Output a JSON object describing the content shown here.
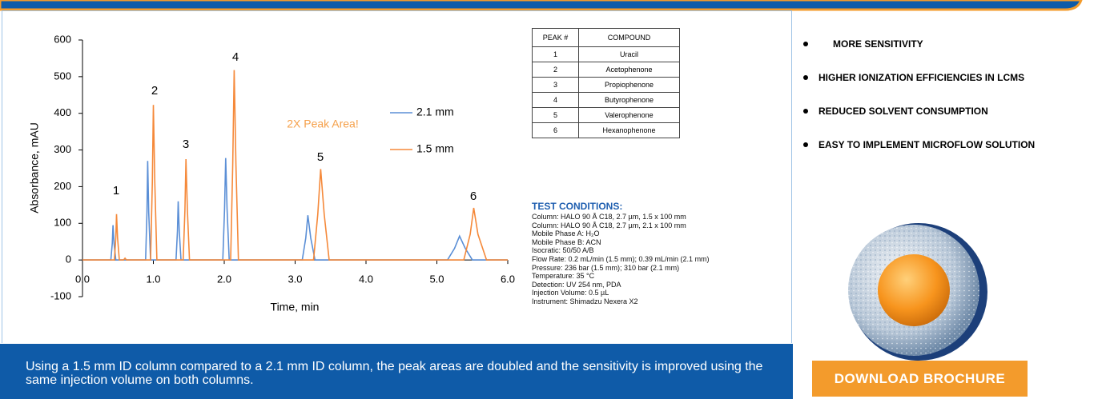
{
  "chart_data": {
    "type": "line",
    "y_label": "Absorbance, mAU",
    "x_label": "Time, min",
    "xlim": [
      0,
      6
    ],
    "ylim": [
      -100,
      600
    ],
    "xticks": [
      {
        "value": 0,
        "label": "0.0"
      },
      {
        "value": 1,
        "label": "1.0"
      },
      {
        "value": 2,
        "label": "2.0"
      },
      {
        "value": 3,
        "label": "3.0"
      },
      {
        "value": 4,
        "label": "4.0"
      },
      {
        "value": 5,
        "label": "5.0"
      },
      {
        "value": 6,
        "label": "6.0"
      }
    ],
    "yticks": [
      -100,
      0,
      100,
      200,
      300,
      400,
      500,
      600
    ],
    "series": [
      {
        "name": "2.1 mm",
        "color": "#5b8fd6",
        "x": [
          0,
          0.4,
          0.42,
          0.43,
          0.445,
          0.47,
          0.89,
          0.91,
          0.92,
          0.935,
          0.96,
          1.32,
          1.34,
          1.35,
          1.365,
          1.39,
          1.98,
          2.005,
          2.02,
          2.04,
          2.07,
          3.1,
          3.15,
          3.18,
          3.22,
          3.28,
          5.15,
          5.25,
          5.32,
          5.4,
          5.5,
          6.0
        ],
        "values": [
          0,
          0,
          45,
          95,
          45,
          0,
          0,
          130,
          270,
          130,
          0,
          0,
          80,
          160,
          80,
          0,
          0,
          140,
          278,
          140,
          0,
          0,
          60,
          122,
          60,
          0,
          0,
          32,
          65,
          32,
          0,
          0
        ]
      },
      {
        "name": "1.5 mm",
        "color": "#f5893a",
        "x": [
          0,
          0.45,
          0.47,
          0.48,
          0.495,
          0.52,
          0.58,
          0.6,
          0.62,
          0.96,
          0.985,
          1.0,
          1.02,
          1.05,
          1.42,
          1.445,
          1.46,
          1.48,
          1.51,
          2.09,
          2.12,
          2.14,
          2.165,
          2.2,
          3.26,
          3.32,
          3.36,
          3.41,
          3.48,
          5.38,
          5.47,
          5.52,
          5.58,
          5.7,
          6.0
        ],
        "values": [
          0,
          0,
          60,
          125,
          60,
          0,
          0,
          5,
          0,
          0,
          210,
          423,
          210,
          0,
          0,
          135,
          275,
          135,
          0,
          0,
          260,
          518,
          260,
          0,
          0,
          125,
          248,
          125,
          0,
          0,
          70,
          142,
          70,
          0,
          0
        ]
      }
    ],
    "peak_labels": [
      "1",
      "2",
      "3",
      "4",
      "5",
      "6"
    ],
    "annotation": "2X Peak Area!"
  },
  "peak_table": {
    "headers": [
      "PEAK #",
      "COMPOUND"
    ],
    "rows": [
      [
        "1",
        "Uracil"
      ],
      [
        "2",
        "Acetophenone"
      ],
      [
        "3",
        "Propiophenone"
      ],
      [
        "4",
        "Butyrophenone"
      ],
      [
        "5",
        "Valerophenone"
      ],
      [
        "6",
        "Hexanophenone"
      ]
    ]
  },
  "test_conditions": {
    "title": "TEST CONDITIONS:",
    "lines": [
      "Column: HALO 90 Å C18, 2.7 µm, 1.5 x 100 mm",
      "Column: HALO 90 Å C18, 2.7 µm, 2.1 x 100 mm",
      "Mobile Phase A: H₂O",
      "Mobile Phase B: ACN",
      "Isocratic: 50/50 A/B",
      "Flow Rate: 0.2 mL/min (1.5 mm); 0.39 mL/min (2.1 mm)",
      "Pressure: 236 bar (1.5 mm); 310 bar (2.1 mm)",
      "Temperature: 35 °C",
      "Detection: UV 254 nm, PDA",
      "Injection Volume: 0.5 µL",
      "Instrument: Shimadzu Nexera X2"
    ]
  },
  "features": [
    "MORE SENSITIVITY",
    "HIGHER IONIZATION EFFICIENCIES  IN LCMS",
    "REDUCED SOLVENT CONSUMPTION",
    "EASY TO IMPLEMENT MICROFLOW SOLUTION"
  ],
  "caption": "Using a 1.5 mm ID column compared to a 2.1 mm ID column, the peak areas are doubled and the sensitivity is improved using the same injection volume on both columns.",
  "button": "DOWNLOAD BROCHURE"
}
